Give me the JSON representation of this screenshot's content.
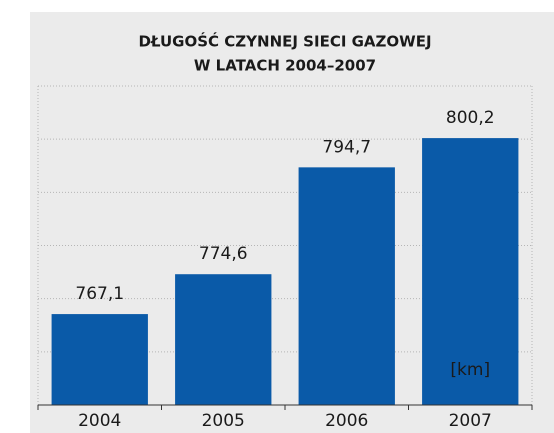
{
  "chart_data": {
    "type": "bar",
    "title": [
      "DŁUGOŚĆ CZYNNEJ SIECI GAZOWEJ",
      "W LATACH 2004–2007"
    ],
    "categories": [
      "2004",
      "2005",
      "2006",
      "2007"
    ],
    "values": [
      767.1,
      774.6,
      794.7,
      800.2
    ],
    "value_labels": [
      "767,1",
      "774,6",
      "794,7",
      "800,2"
    ],
    "color": "#0a5aa8",
    "unit_label": "[km]",
    "ylim": [
      750,
      810
    ],
    "yticks": [
      760,
      770,
      780,
      790,
      800,
      810
    ],
    "grid": true
  }
}
